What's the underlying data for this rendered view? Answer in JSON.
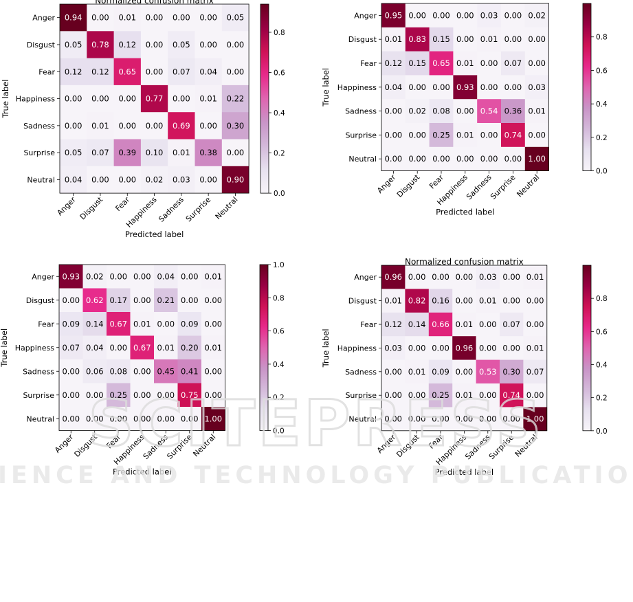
{
  "colormap": {
    "stops": [
      [
        0.0,
        "#f7f4f9"
      ],
      [
        0.125,
        "#e7e1ef"
      ],
      [
        0.25,
        "#d4b9da"
      ],
      [
        0.375,
        "#c994c7"
      ],
      [
        0.5,
        "#df65b0"
      ],
      [
        0.625,
        "#e7298a"
      ],
      [
        0.75,
        "#ce1256"
      ],
      [
        0.875,
        "#980043"
      ],
      [
        1.0,
        "#67001f"
      ]
    ]
  },
  "watermark": {
    "big_text": "SCITEPRESS",
    "small_text": "SCIENCE AND TECHNOLOGY PUBLICATIONS"
  },
  "chart_data": [
    {
      "type": "heatmap",
      "title": "Normalized confusion matrix",
      "xlabel": "Predicted label",
      "ylabel": "True label",
      "labels": [
        "Anger",
        "Disgust",
        "Fear",
        "Happiness",
        "Sadness",
        "Surprise",
        "Neutral"
      ],
      "matrix": [
        [
          0.94,
          0.0,
          0.01,
          0.0,
          0.0,
          0.0,
          0.05
        ],
        [
          0.05,
          0.78,
          0.12,
          0.0,
          0.05,
          0.0,
          0.0
        ],
        [
          0.12,
          0.12,
          0.65,
          0.0,
          0.07,
          0.04,
          0.0
        ],
        [
          0.0,
          0.0,
          0.0,
          0.77,
          0.0,
          0.01,
          0.22
        ],
        [
          0.0,
          0.01,
          0.0,
          0.0,
          0.69,
          0.0,
          0.3
        ],
        [
          0.05,
          0.07,
          0.39,
          0.1,
          0.01,
          0.38,
          0.0
        ],
        [
          0.04,
          0.0,
          0.0,
          0.02,
          0.03,
          0.0,
          0.9
        ]
      ],
      "vmin": 0,
      "vmax": 0.94,
      "colorbar_ticks": [
        0.0,
        0.2,
        0.4,
        0.6,
        0.8
      ],
      "colorbar_tick_labels": [
        "0.0",
        "0.2",
        "0.4",
        "0.6",
        "0.8"
      ]
    },
    {
      "type": "heatmap",
      "title": "",
      "xlabel": "Predicted label",
      "ylabel": "True label",
      "labels": [
        "Anger",
        "Disgust",
        "Fear",
        "Happiness",
        "Sadness",
        "Surprise",
        "Neutral"
      ],
      "matrix": [
        [
          0.95,
          0.0,
          0.0,
          0.0,
          0.03,
          0.0,
          0.02
        ],
        [
          0.01,
          0.83,
          0.15,
          0.0,
          0.01,
          0.0,
          0.0
        ],
        [
          0.12,
          0.15,
          0.65,
          0.01,
          0.0,
          0.07,
          0.0
        ],
        [
          0.04,
          0.0,
          0.0,
          0.93,
          0.0,
          0.0,
          0.03
        ],
        [
          0.0,
          0.02,
          0.08,
          0.0,
          0.54,
          0.36,
          0.01
        ],
        [
          0.0,
          0.0,
          0.25,
          0.01,
          0.0,
          0.74,
          0.0
        ],
        [
          0.0,
          0.0,
          0.0,
          0.0,
          0.0,
          0.0,
          1.0
        ]
      ],
      "vmin": 0,
      "vmax": 1.0,
      "colorbar_ticks": [
        0.0,
        0.2,
        0.4,
        0.6,
        0.8
      ],
      "colorbar_tick_labels": [
        "0.0",
        "0.2",
        "0.4",
        "0.6",
        "0.8"
      ]
    },
    {
      "type": "heatmap",
      "title": "",
      "xlabel": "Predicted label",
      "ylabel": "True label",
      "labels": [
        "Anger",
        "Disgust",
        "Fear",
        "Happiness",
        "Sadness",
        "Surprise",
        "Neutral"
      ],
      "matrix": [
        [
          0.93,
          0.02,
          0.0,
          0.0,
          0.04,
          0.0,
          0.01
        ],
        [
          0.0,
          0.62,
          0.17,
          0.0,
          0.21,
          0.0,
          0.0
        ],
        [
          0.09,
          0.14,
          0.67,
          0.01,
          0.0,
          0.09,
          0.0
        ],
        [
          0.07,
          0.04,
          0.0,
          0.67,
          0.01,
          0.2,
          0.01
        ],
        [
          0.0,
          0.06,
          0.08,
          0.0,
          0.45,
          0.41,
          0.0
        ],
        [
          0.0,
          0.0,
          0.25,
          0.0,
          0.0,
          0.75,
          0.0
        ],
        [
          0.0,
          0.0,
          0.0,
          0.0,
          0.0,
          0.0,
          1.0
        ]
      ],
      "vmin": 0,
      "vmax": 1.0,
      "colorbar_ticks": [
        0.0,
        0.2,
        0.4,
        0.6,
        0.8,
        1.0
      ],
      "colorbar_tick_labels": [
        "0.0",
        "0.2",
        "0.4",
        "0.6",
        "0.8",
        "1.0"
      ]
    },
    {
      "type": "heatmap",
      "title": "Normalized confusion matrix",
      "xlabel": "Predicted label",
      "ylabel": "True label",
      "labels": [
        "Anger",
        "Disgust",
        "Fear",
        "Happiness",
        "Sadness",
        "Surprise",
        "Neutral"
      ],
      "matrix": [
        [
          0.96,
          0.0,
          0.0,
          0.0,
          0.03,
          0.0,
          0.01
        ],
        [
          0.01,
          0.82,
          0.16,
          0.0,
          0.01,
          0.0,
          0.0
        ],
        [
          0.12,
          0.14,
          0.66,
          0.01,
          0.0,
          0.07,
          0.0
        ],
        [
          0.03,
          0.0,
          0.0,
          0.96,
          0.0,
          0.0,
          0.01
        ],
        [
          0.0,
          0.01,
          0.09,
          0.0,
          0.53,
          0.3,
          0.07
        ],
        [
          0.0,
          0.0,
          0.25,
          0.01,
          0.0,
          0.74,
          0.0
        ],
        [
          0.0,
          0.0,
          0.0,
          0.0,
          0.0,
          0.0,
          1.0
        ]
      ],
      "vmin": 0,
      "vmax": 1.0,
      "colorbar_ticks": [
        0.0,
        0.2,
        0.4,
        0.6,
        0.8
      ],
      "colorbar_tick_labels": [
        "0.0",
        "0.2",
        "0.4",
        "0.6",
        "0.8"
      ]
    }
  ]
}
